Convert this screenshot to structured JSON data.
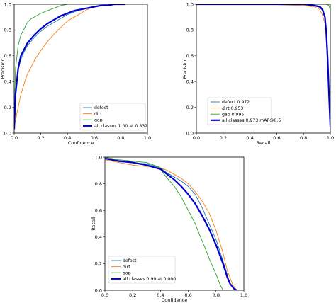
{
  "colors": {
    "defect": "#1f77b4",
    "dirt": "#ff7f0e",
    "gap": "#2ca02c",
    "all": "#0000cc"
  },
  "chart_data": [
    {
      "type": "line",
      "xlabel": "Confidence",
      "ylabel": "Precision",
      "xlim": [
        0,
        1
      ],
      "ylim": [
        0,
        1
      ],
      "x_ticks": [
        "0.0",
        "0.2",
        "0.4",
        "0.6",
        "0.8",
        "1.0"
      ],
      "y_ticks": [
        "0.0",
        "0.2",
        "0.4",
        "0.6",
        "0.8",
        "1.0"
      ],
      "grid": false,
      "legend_position": "lower-right",
      "series": [
        {
          "name": "defect",
          "color_key": "defect",
          "thick": false,
          "x": [
            0,
            0.01,
            0.03,
            0.06,
            0.1,
            0.15,
            0.2,
            0.25,
            0.3,
            0.35,
            0.4,
            0.45,
            0.5,
            0.55,
            0.6,
            0.65,
            0.7,
            0.75,
            0.8
          ],
          "y": [
            0.05,
            0.3,
            0.5,
            0.6,
            0.68,
            0.74,
            0.79,
            0.83,
            0.86,
            0.89,
            0.92,
            0.94,
            0.96,
            0.97,
            0.98,
            0.99,
            0.99,
            1.0,
            1.0
          ]
        },
        {
          "name": "dirt",
          "color_key": "dirt",
          "thick": false,
          "x": [
            0,
            0.02,
            0.05,
            0.08,
            0.1,
            0.13,
            0.16,
            0.2,
            0.25,
            0.3,
            0.35,
            0.4,
            0.45,
            0.5,
            0.55,
            0.6,
            0.65,
            0.7
          ],
          "y": [
            0.04,
            0.15,
            0.3,
            0.4,
            0.46,
            0.52,
            0.58,
            0.64,
            0.71,
            0.77,
            0.82,
            0.87,
            0.9,
            0.93,
            0.96,
            0.98,
            0.99,
            1.0
          ]
        },
        {
          "name": "gap",
          "color_key": "gap",
          "thick": false,
          "x": [
            0,
            0.01,
            0.03,
            0.05,
            0.08,
            0.1,
            0.13,
            0.15,
            0.2,
            0.25,
            0.3,
            0.35,
            0.4
          ],
          "y": [
            0.1,
            0.5,
            0.68,
            0.76,
            0.82,
            0.86,
            0.89,
            0.9,
            0.93,
            0.95,
            0.97,
            0.99,
            1.0
          ]
        },
        {
          "name": "all classes 1.00 at 0.832",
          "color_key": "all",
          "thick": true,
          "x": [
            0,
            0.01,
            0.03,
            0.05,
            0.08,
            0.1,
            0.15,
            0.2,
            0.25,
            0.3,
            0.35,
            0.4,
            0.45,
            0.5,
            0.55,
            0.6,
            0.65,
            0.7,
            0.75,
            0.8,
            0.832
          ],
          "y": [
            0.03,
            0.3,
            0.5,
            0.6,
            0.66,
            0.7,
            0.76,
            0.81,
            0.85,
            0.88,
            0.91,
            0.93,
            0.95,
            0.96,
            0.97,
            0.98,
            0.99,
            0.99,
            1.0,
            1.0,
            1.0
          ]
        }
      ]
    },
    {
      "type": "line",
      "xlabel": "Recall",
      "ylabel": "Precision",
      "xlim": [
        0,
        1
      ],
      "ylim": [
        0,
        1
      ],
      "x_ticks": [
        "0.0",
        "0.2",
        "0.4",
        "0.6",
        "0.8",
        "1.0"
      ],
      "y_ticks": [
        "0.0",
        "0.2",
        "0.4",
        "0.6",
        "0.8",
        "1.0"
      ],
      "grid": false,
      "legend_position": "lower-right",
      "series": [
        {
          "name": "defect 0.972",
          "color_key": "defect",
          "thick": false,
          "x": [
            0,
            0.5,
            0.8,
            0.9,
            0.93,
            0.95,
            0.96,
            0.97,
            0.98,
            0.99,
            1.0
          ],
          "y": [
            1.0,
            1.0,
            1.0,
            0.99,
            0.98,
            0.95,
            0.88,
            0.75,
            0.55,
            0.3,
            0.05
          ]
        },
        {
          "name": "dirt 0.953",
          "color_key": "dirt",
          "thick": false,
          "x": [
            0,
            0.5,
            0.8,
            0.88,
            0.92,
            0.94,
            0.96,
            0.97,
            0.98,
            0.99,
            1.0
          ],
          "y": [
            1.0,
            1.0,
            0.99,
            0.98,
            0.96,
            0.92,
            0.85,
            0.72,
            0.5,
            0.25,
            0.05
          ]
        },
        {
          "name": "gap 0.995",
          "color_key": "gap",
          "thick": false,
          "x": [
            0,
            0.5,
            0.9,
            0.97,
            0.99,
            1.0,
            1.0
          ],
          "y": [
            1.0,
            1.0,
            1.0,
            1.0,
            0.99,
            0.95,
            0.1
          ]
        },
        {
          "name": "all classes 0.973 mAP@0.5",
          "color_key": "all",
          "thick": true,
          "x": [
            0,
            0.5,
            0.8,
            0.88,
            0.92,
            0.94,
            0.96,
            0.97,
            0.98,
            0.99,
            1.0
          ],
          "y": [
            1.0,
            1.0,
            1.0,
            0.99,
            0.98,
            0.96,
            0.9,
            0.78,
            0.58,
            0.3,
            0.05
          ]
        }
      ]
    },
    {
      "type": "line",
      "xlabel": "Confidence",
      "ylabel": "Recall",
      "xlim": [
        0,
        1
      ],
      "ylim": [
        0,
        1
      ],
      "x_ticks": [
        "0.0",
        "0.2",
        "0.4",
        "0.6",
        "0.8",
        "1.0"
      ],
      "y_ticks": [
        "0.0",
        "0.2",
        "0.4",
        "0.6",
        "0.8",
        "1.0"
      ],
      "grid": false,
      "legend_position": "lower-left",
      "series": [
        {
          "name": "defect",
          "color_key": "defect",
          "thick": false,
          "x": [
            0,
            0.1,
            0.2,
            0.3,
            0.4,
            0.45,
            0.5,
            0.55,
            0.6,
            0.65,
            0.7,
            0.75,
            0.8,
            0.85,
            0.88,
            0.9,
            0.93,
            0.96
          ],
          "y": [
            0.99,
            0.97,
            0.96,
            0.95,
            0.92,
            0.88,
            0.85,
            0.82,
            0.78,
            0.72,
            0.62,
            0.5,
            0.38,
            0.22,
            0.12,
            0.05,
            0.01,
            0.0
          ]
        },
        {
          "name": "dirt",
          "color_key": "dirt",
          "thick": false,
          "x": [
            0,
            0.1,
            0.2,
            0.3,
            0.4,
            0.45,
            0.5,
            0.55,
            0.6,
            0.65,
            0.7,
            0.75,
            0.8,
            0.85,
            0.88,
            0.92,
            0.95
          ],
          "y": [
            0.98,
            0.96,
            0.94,
            0.93,
            0.92,
            0.9,
            0.87,
            0.84,
            0.8,
            0.74,
            0.67,
            0.58,
            0.45,
            0.28,
            0.15,
            0.04,
            0.0
          ]
        },
        {
          "name": "gap",
          "color_key": "gap",
          "thick": false,
          "x": [
            0,
            0.1,
            0.2,
            0.3,
            0.38,
            0.4,
            0.42,
            0.45,
            0.5,
            0.55,
            0.6,
            0.65,
            0.68,
            0.72,
            0.75,
            0.8,
            0.83,
            0.85
          ],
          "y": [
            1.0,
            0.98,
            0.97,
            0.96,
            0.93,
            0.92,
            0.88,
            0.84,
            0.78,
            0.7,
            0.6,
            0.5,
            0.42,
            0.32,
            0.24,
            0.12,
            0.04,
            0.0
          ]
        },
        {
          "name": "all classes 0.99 at 0.000",
          "color_key": "all",
          "thick": true,
          "x": [
            0,
            0.1,
            0.2,
            0.3,
            0.4,
            0.45,
            0.5,
            0.55,
            0.6,
            0.65,
            0.7,
            0.75,
            0.8,
            0.85,
            0.88,
            0.9,
            0.93,
            0.95
          ],
          "y": [
            0.99,
            0.97,
            0.96,
            0.94,
            0.91,
            0.87,
            0.83,
            0.78,
            0.72,
            0.65,
            0.56,
            0.46,
            0.34,
            0.2,
            0.1,
            0.05,
            0.01,
            0.0
          ]
        }
      ]
    }
  ]
}
